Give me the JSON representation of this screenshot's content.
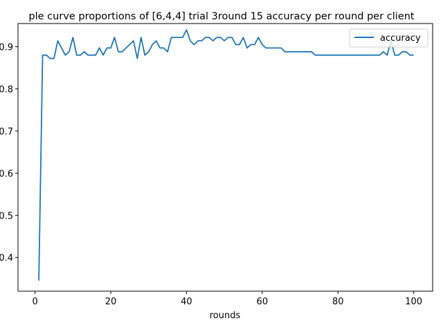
{
  "chart_data": {
    "type": "line",
    "title": "ple curve proportions of [6,4,4] trial 3round 15 accuracy per round per client",
    "xlabel": "rounds",
    "ylabel": "",
    "xlim": [
      -4.5,
      105
    ],
    "ylim": [
      0.32,
      0.955
    ],
    "xticks": [
      0,
      20,
      40,
      60,
      80,
      100
    ],
    "yticks": [
      0.4,
      0.5,
      0.6,
      0.7,
      0.8,
      0.9
    ],
    "ytick_labels": [
      "0.4",
      "0.5",
      "0.6",
      "0.7",
      "0.8",
      "0.9"
    ],
    "legend": {
      "position": "top-right",
      "entries": [
        "accuracy"
      ]
    },
    "grid": false,
    "colors": {
      "accuracy": "#1f77b4"
    },
    "series": [
      {
        "name": "accuracy",
        "x": [
          1,
          2,
          3,
          4,
          5,
          6,
          7,
          8,
          9,
          10,
          11,
          12,
          13,
          14,
          15,
          16,
          17,
          18,
          19,
          20,
          21,
          22,
          23,
          24,
          25,
          26,
          27,
          28,
          29,
          30,
          31,
          32,
          33,
          34,
          35,
          36,
          37,
          38,
          39,
          40,
          41,
          42,
          43,
          44,
          45,
          46,
          47,
          48,
          49,
          50,
          51,
          52,
          53,
          54,
          55,
          56,
          57,
          58,
          59,
          60,
          61,
          62,
          63,
          64,
          65,
          66,
          67,
          68,
          69,
          70,
          71,
          72,
          73,
          74,
          75,
          76,
          77,
          78,
          79,
          80,
          81,
          82,
          83,
          84,
          85,
          86,
          87,
          88,
          89,
          90,
          91,
          92,
          93,
          94,
          95,
          96,
          97,
          98,
          99,
          100
        ],
        "values": [
          0.345,
          0.88,
          0.88,
          0.872,
          0.872,
          0.914,
          0.897,
          0.88,
          0.888,
          0.922,
          0.88,
          0.88,
          0.888,
          0.88,
          0.88,
          0.88,
          0.897,
          0.88,
          0.897,
          0.897,
          0.922,
          0.888,
          0.888,
          0.897,
          0.905,
          0.914,
          0.872,
          0.922,
          0.88,
          0.888,
          0.905,
          0.914,
          0.897,
          0.897,
          0.888,
          0.922,
          0.922,
          0.922,
          0.922,
          0.94,
          0.914,
          0.905,
          0.914,
          0.914,
          0.922,
          0.922,
          0.914,
          0.922,
          0.922,
          0.914,
          0.922,
          0.922,
          0.905,
          0.905,
          0.922,
          0.897,
          0.905,
          0.905,
          0.922,
          0.905,
          0.897,
          0.897,
          0.897,
          0.897,
          0.897,
          0.888,
          0.888,
          0.888,
          0.888,
          0.888,
          0.888,
          0.888,
          0.888,
          0.88,
          0.88,
          0.88,
          0.88,
          0.88,
          0.88,
          0.88,
          0.88,
          0.88,
          0.88,
          0.88,
          0.88,
          0.88,
          0.88,
          0.88,
          0.88,
          0.88,
          0.88,
          0.888,
          0.88,
          0.914,
          0.88,
          0.88,
          0.888,
          0.888,
          0.88,
          0.88
        ]
      }
    ]
  }
}
